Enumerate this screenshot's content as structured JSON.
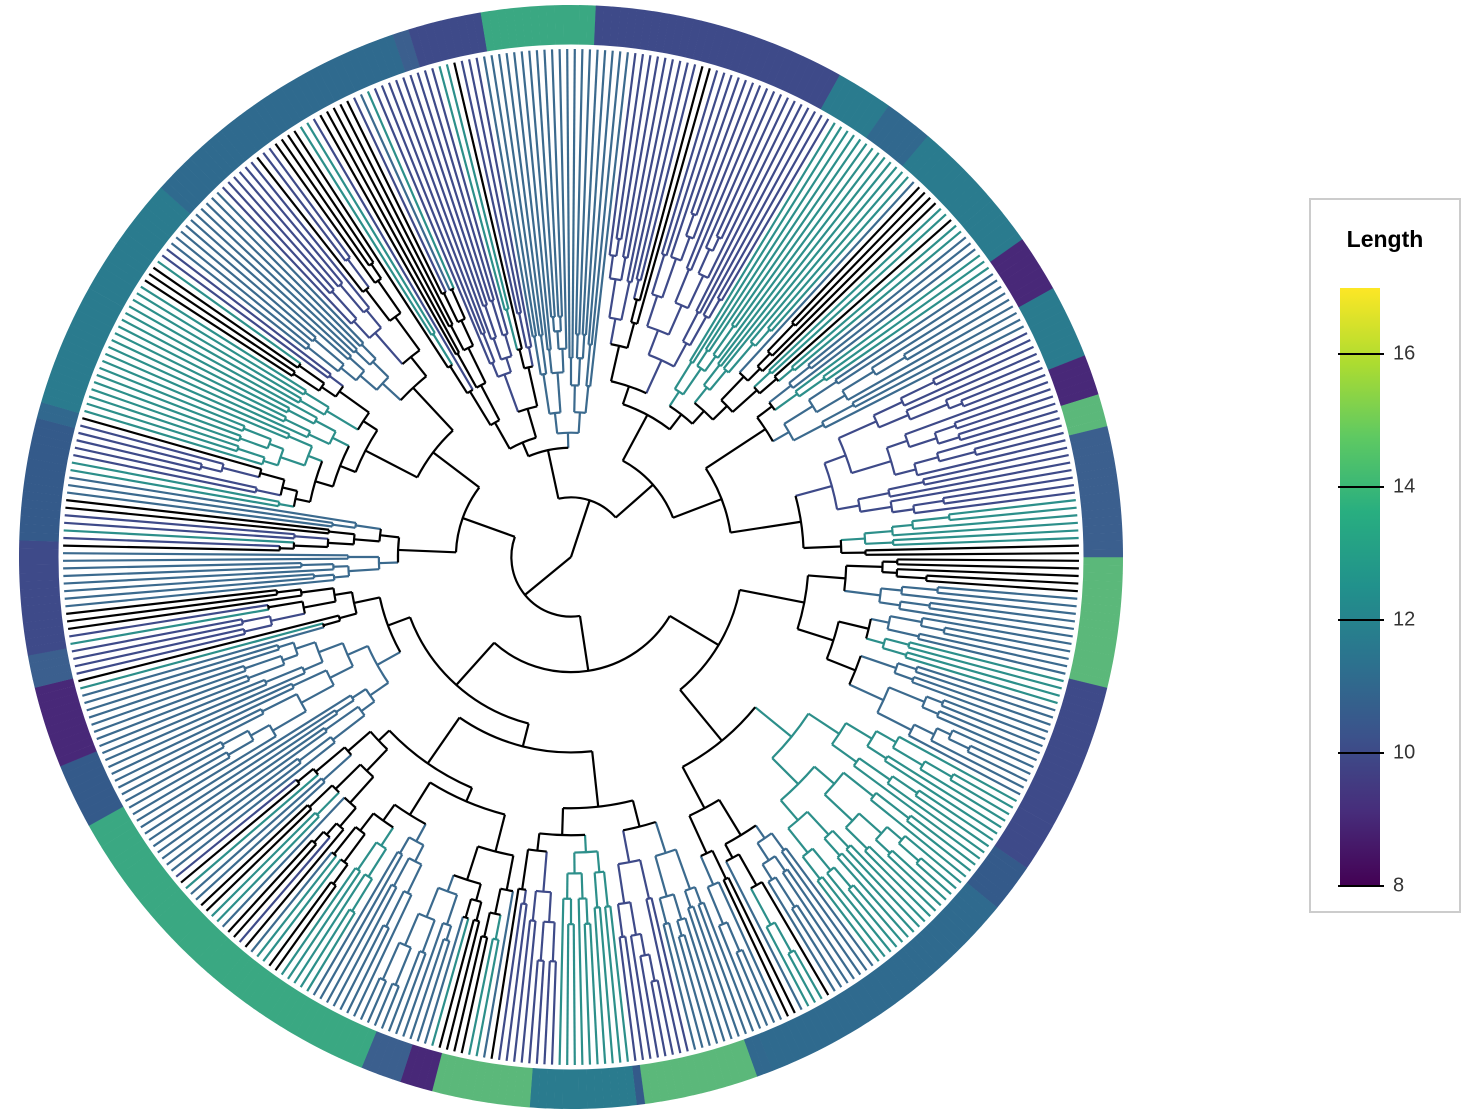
{
  "legend": {
    "title": "Length",
    "min": 8,
    "max": 17,
    "ticks": [
      {
        "value": 16,
        "label": "16"
      },
      {
        "value": 14,
        "label": "14"
      },
      {
        "value": 12,
        "label": "12"
      },
      {
        "value": 10,
        "label": "10"
      },
      {
        "value": 8,
        "label": "8"
      }
    ],
    "gradient_stops": [
      "#440154",
      "#472d7b",
      "#3b528b",
      "#2c728e",
      "#21918c",
      "#28ae80",
      "#5ec962",
      "#addc30",
      "#fde725"
    ]
  },
  "diagram": {
    "type": "circular-phylogenetic-tree",
    "leaf_count": 420,
    "ring_colors": [
      "#2a7b8e",
      "#3b5f8e",
      "#345a8a",
      "#2f6a8e",
      "#31688e",
      "#2a788e",
      "#3e4a89",
      "#482878",
      "#3aa882",
      "#5bb87a"
    ],
    "branch_colors": [
      "#000000",
      "#3b6a8e",
      "#2c8f8a",
      "#3e4a89",
      "#5ec962"
    ]
  }
}
